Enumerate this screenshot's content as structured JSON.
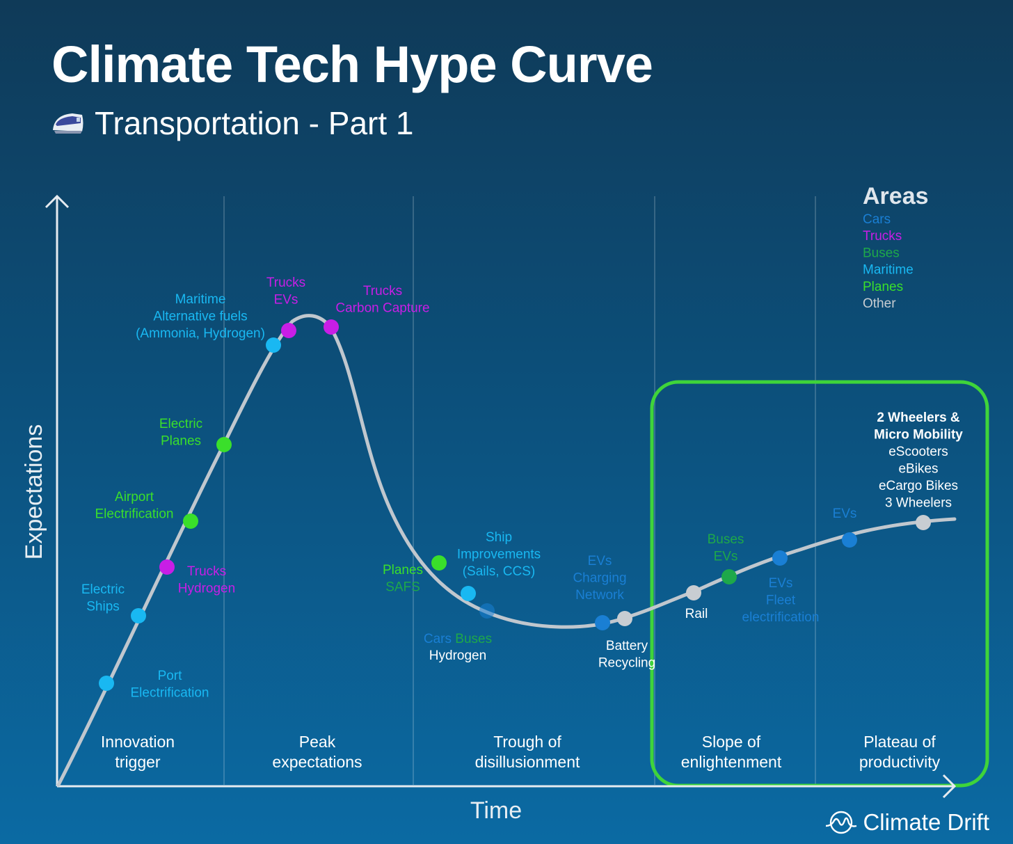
{
  "title": "Climate Tech Hype Curve",
  "subtitle": "Transportation - Part 1",
  "brand": "Climate Drift",
  "colors": {
    "cars": "#1a7fd4",
    "trucks": "#c81ee6",
    "buses": "#1ea84a",
    "maritime": "#19b8f2",
    "planes": "#3adf2b",
    "other": "#c8cdd2",
    "highlight": "#3fd43a",
    "curve": "#c0c7ce"
  },
  "chart_data": {
    "type": "scatter",
    "title": "Climate Tech Hype Curve",
    "subtitle": "Transportation - Part 1",
    "xlabel": "Time",
    "ylabel": "Expectations",
    "phases": [
      "Innovation trigger",
      "Peak expectations",
      "Trough of disillusionment",
      "Slope of enlightenment",
      "Plateau of productivity"
    ],
    "legend": {
      "title": "Areas",
      "items": [
        {
          "name": "Cars",
          "color": "#1a7fd4"
        },
        {
          "name": "Trucks",
          "color": "#c81ee6"
        },
        {
          "name": "Buses",
          "color": "#1ea84a"
        },
        {
          "name": "Maritime",
          "color": "#19b8f2"
        },
        {
          "name": "Planes",
          "color": "#3adf2b"
        },
        {
          "name": "Other",
          "color": "#c8cdd2"
        }
      ],
      "position": "top-right"
    },
    "highlight_phases": [
      "Slope of enlightenment",
      "Plateau of productivity"
    ],
    "points": [
      {
        "area": "Maritime",
        "label": [
          "Port",
          "Electrification"
        ]
      },
      {
        "area": "Maritime",
        "label": [
          "Electric",
          "Ships"
        ]
      },
      {
        "area": "Trucks",
        "label": [
          "Trucks",
          "Hydrogen"
        ]
      },
      {
        "area": "Planes",
        "label": [
          "Airport",
          "Electrification"
        ]
      },
      {
        "area": "Planes",
        "label": [
          "Electric",
          "Planes"
        ]
      },
      {
        "area": "Maritime",
        "label": [
          "Maritime",
          "Alternative fuels",
          "(Ammonia, Hydrogen)"
        ]
      },
      {
        "area": "Trucks",
        "label": [
          "Trucks",
          "EVs"
        ]
      },
      {
        "area": "Trucks",
        "label": [
          "Trucks",
          "Carbon Capture"
        ]
      },
      {
        "area": "Planes",
        "label": [
          "Planes",
          "SAFS"
        ]
      },
      {
        "area": "Maritime",
        "label": [
          "Ship",
          "Improvements",
          "(Sails, CCS)"
        ]
      },
      {
        "area": "Cars",
        "label": [
          "Cars",
          "Buses",
          "Hydrogen"
        ]
      },
      {
        "area": "Cars",
        "label": [
          "EVs",
          "Charging",
          "Network"
        ]
      },
      {
        "area": "Other",
        "label": [
          "Battery",
          "Recycling"
        ]
      },
      {
        "area": "Other",
        "label": [
          "Rail"
        ]
      },
      {
        "area": "Buses",
        "label": [
          "Buses",
          "EVs"
        ]
      },
      {
        "area": "Cars",
        "label": [
          "EVs",
          "Fleet",
          "electrification"
        ]
      },
      {
        "area": "Cars",
        "label": [
          "EVs"
        ]
      },
      {
        "area": "Other",
        "label": [
          "2 Wheelers &",
          "Micro Mobility",
          "eScooters",
          "eBikes",
          "eCargo Bikes",
          "3 Wheelers"
        ]
      }
    ]
  }
}
